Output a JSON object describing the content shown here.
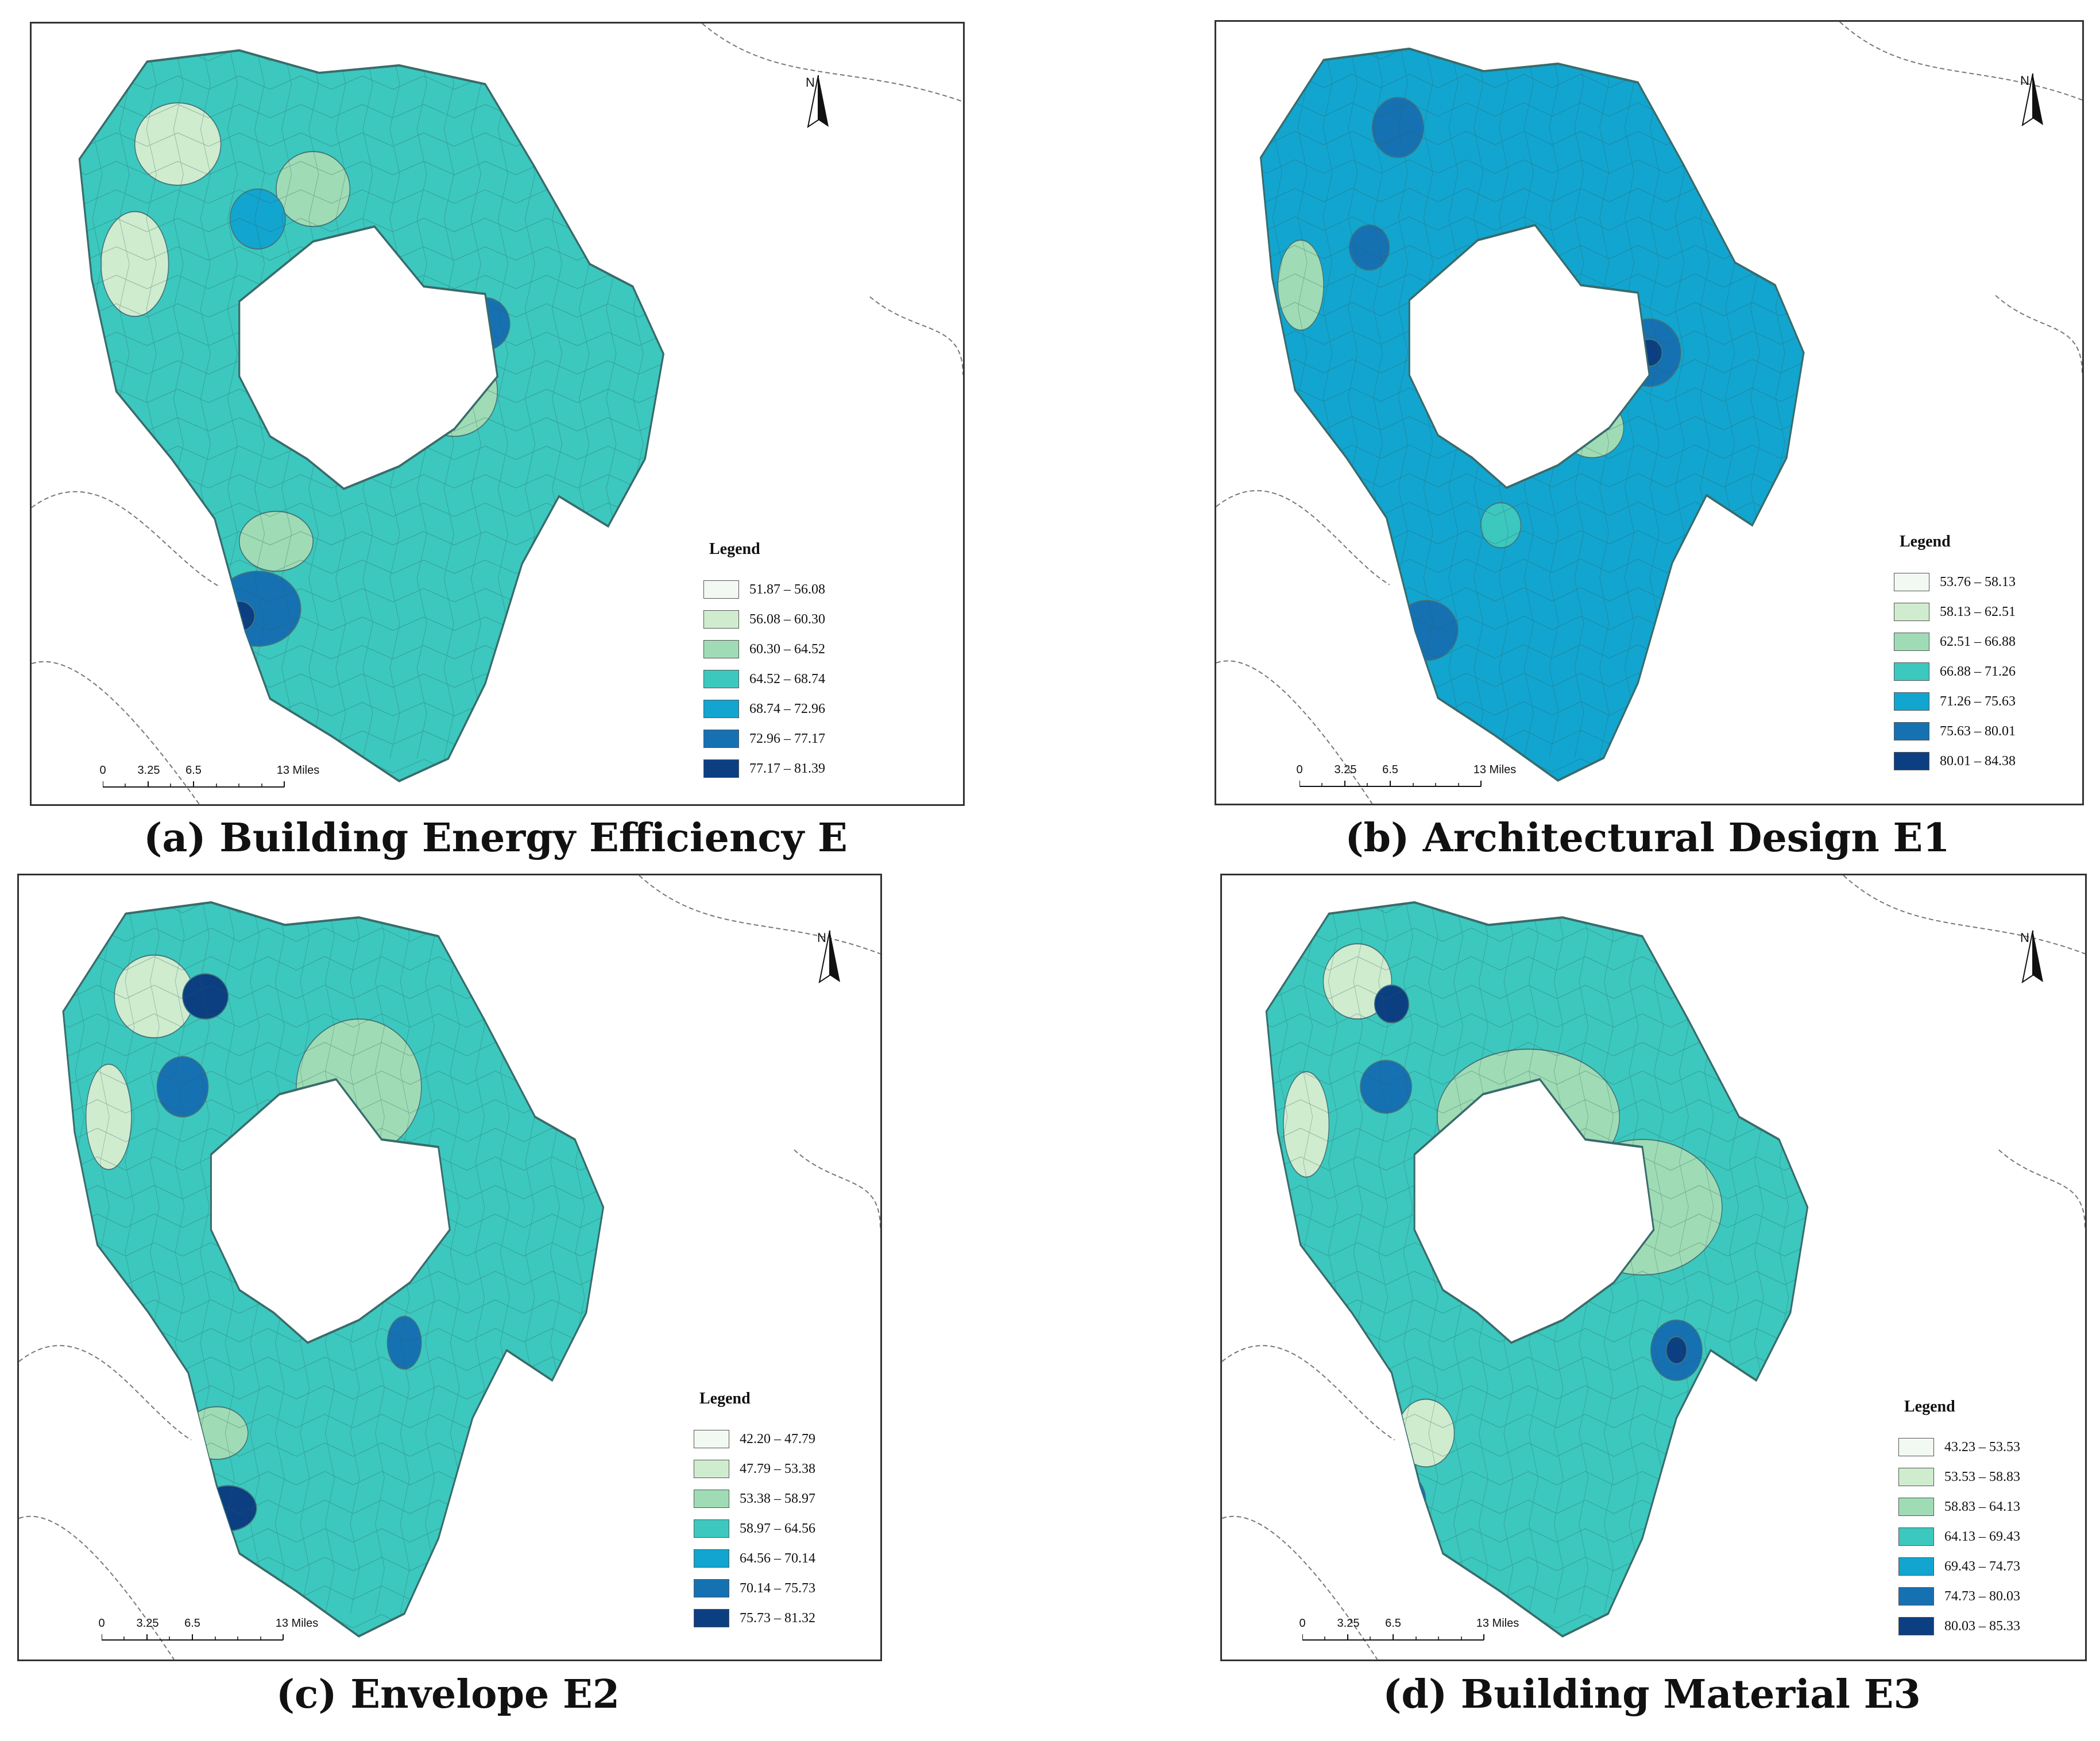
{
  "figure": {
    "panels": [
      {
        "id": "a",
        "caption": "(a) Building Energy Efficiency E",
        "legend_title": "Legend",
        "classes": [
          "51.87 – 56.08",
          "56.08 – 60.30",
          "60.30 – 64.52",
          "64.52 – 68.74",
          "68.74 – 72.96",
          "72.96 – 77.17",
          "77.17 – 81.39"
        ],
        "dominant_class": 3
      },
      {
        "id": "b",
        "caption": "(b) Architectural Design E1",
        "legend_title": "Legend",
        "classes": [
          "53.76 – 58.13",
          "58.13 – 62.51",
          "62.51 – 66.88",
          "66.88 – 71.26",
          "71.26 – 75.63",
          "75.63 – 80.01",
          "80.01 – 84.38"
        ],
        "dominant_class": 4
      },
      {
        "id": "c",
        "caption": "(c) Envelope E2",
        "legend_title": "Legend",
        "classes": [
          "42.20 – 47.79",
          "47.79 – 53.38",
          "53.38 – 58.97",
          "58.97 – 64.56",
          "64.56 – 70.14",
          "70.14 – 75.73",
          "75.73 – 81.32"
        ],
        "dominant_class": 3
      },
      {
        "id": "d",
        "caption": "(d) Building Material E3",
        "legend_title": "Legend",
        "classes": [
          "43.23 – 53.53",
          "53.53 – 58.83",
          "58.83 – 64.13",
          "64.13 – 69.43",
          "69.43 – 74.73",
          "74.73 – 80.03",
          "80.03 – 85.33"
        ],
        "dominant_class": 3
      }
    ],
    "palette": [
      "#f2f9f3",
      "#cfeccf",
      "#9fdcb5",
      "#3cc8be",
      "#12a5cf",
      "#1671b3",
      "#0b3f82"
    ],
    "north_arrow": {
      "letter": "N"
    },
    "scale_bar": {
      "ticks": [
        "0",
        "3.25",
        "6.5",
        "13 Miles"
      ]
    }
  }
}
